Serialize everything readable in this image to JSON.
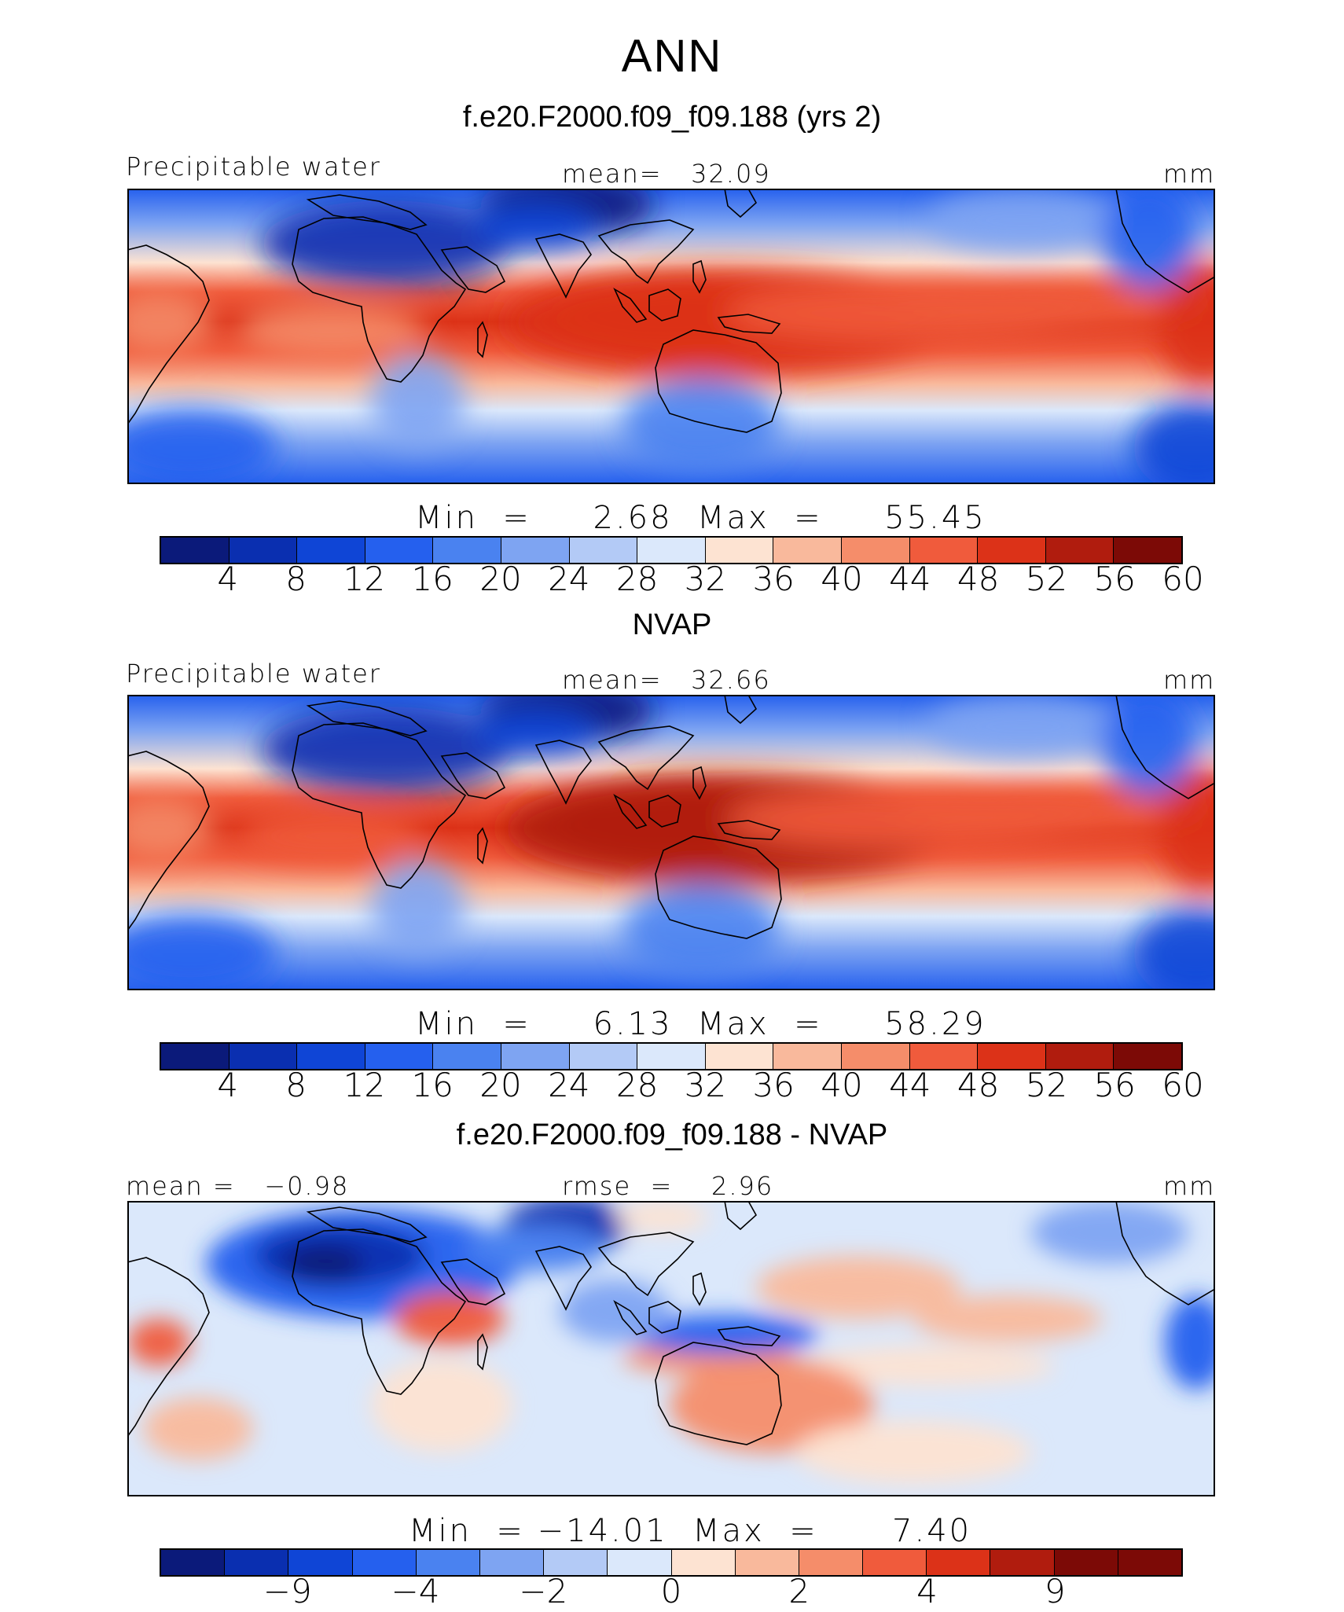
{
  "title": "ANN",
  "colors": {
    "seq": [
      "#0b1a7a",
      "#0a2fb0",
      "#0f45d6",
      "#2560ee",
      "#4a82f0",
      "#7ea4f2",
      "#b3caf6",
      "#dbe8fb",
      "#fde3d2",
      "#f9b99c",
      "#f58d6a",
      "#f05b3c",
      "#dc3218",
      "#b01c0e",
      "#7c0a06"
    ],
    "land_outline": "#000000"
  },
  "panels": [
    {
      "title": "f.e20.F2000.f09_f09.188 (yrs 2)",
      "left_label": "Precipitable water",
      "center_label": "mean=   32.09",
      "right_label": "mm",
      "minmax": "Min  =     2.68  Max  =     55.45",
      "ticks": [
        "4",
        "8",
        "12",
        "16",
        "20",
        "24",
        "28",
        "32",
        "36",
        "40",
        "44",
        "48",
        "52",
        "56",
        "60"
      ]
    },
    {
      "title": "NVAP",
      "left_label": "Precipitable water",
      "center_label": "mean=   32.66",
      "right_label": "mm",
      "minmax": "Min  =     6.13  Max  =     58.29",
      "ticks": [
        "4",
        "8",
        "12",
        "16",
        "20",
        "24",
        "28",
        "32",
        "36",
        "40",
        "44",
        "48",
        "52",
        "56",
        "60"
      ]
    },
    {
      "title": "f.e20.F2000.f09_f09.188 - NVAP",
      "left_label": "mean =   −0.98",
      "center_label": "rmse  =    2.96",
      "right_label": "mm",
      "minmax": "Min  = −14.01  Max  =      7.40",
      "ticks": [
        "−9",
        "−4",
        "−2",
        "0",
        "2",
        "4",
        "9"
      ]
    }
  ]
}
